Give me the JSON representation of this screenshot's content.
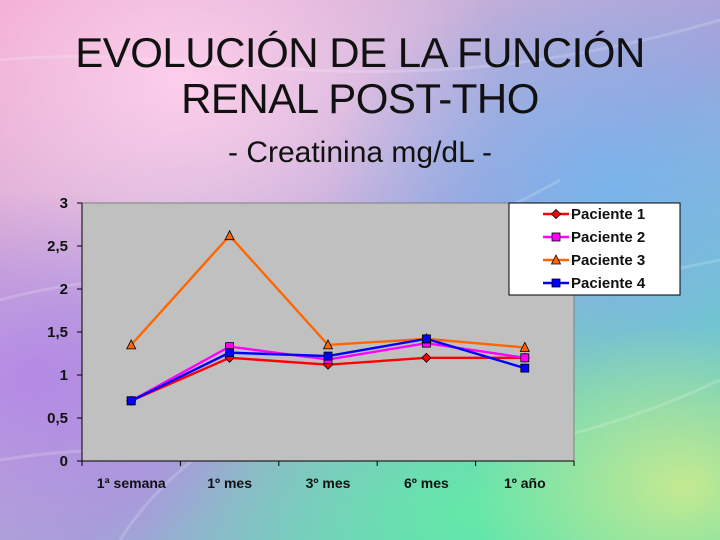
{
  "slide": {
    "title_line1": "EVOLUCIÓN DE LA FUNCIÓN",
    "title_line2": "RENAL POST-THO",
    "subtitle": "- Creatinina mg/dL -"
  },
  "chart_data": {
    "type": "line",
    "title": "",
    "xlabel": "",
    "ylabel": "",
    "categories": [
      "1ª semana",
      "1º mes",
      "3º mes",
      "6º mes",
      "1º año"
    ],
    "y_ticks": [
      "0",
      "0,5",
      "1",
      "1,5",
      "2",
      "2,5",
      "3"
    ],
    "ylim": [
      0,
      3
    ],
    "grid": false,
    "legend_position": "top-right",
    "series": [
      {
        "name": "Paciente 1",
        "color": "#ff0000",
        "marker": "diamond",
        "values": [
          0.7,
          1.2,
          1.12,
          1.2,
          1.2
        ]
      },
      {
        "name": "Paciente 2",
        "color": "#ff00ff",
        "marker": "square",
        "values": [
          0.7,
          1.33,
          1.18,
          1.37,
          1.2
        ]
      },
      {
        "name": "Paciente 3",
        "color": "#ff6600",
        "marker": "triangle",
        "values": [
          1.35,
          2.62,
          1.35,
          1.42,
          1.32
        ]
      },
      {
        "name": "Paciente 4",
        "color": "#0000ff",
        "marker": "square",
        "values": [
          0.7,
          1.26,
          1.22,
          1.42,
          1.08
        ]
      }
    ]
  }
}
